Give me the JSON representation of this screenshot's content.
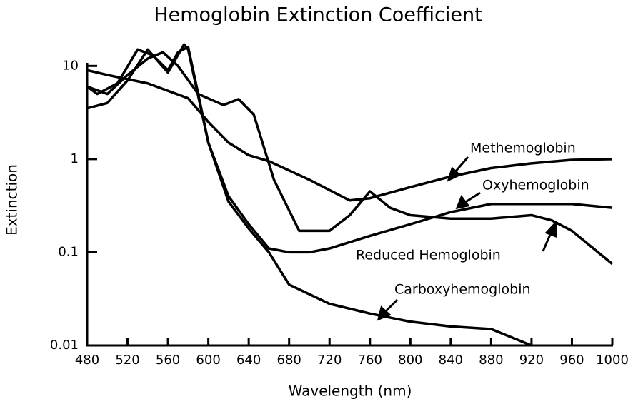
{
  "chart_data": {
    "type": "line",
    "title": "Hemoglobin Extinction Coefficient",
    "x_label": "Wavelength (nm)",
    "y_label": "Extinction",
    "xlim": [
      480,
      1000
    ],
    "xticks": [
      480,
      520,
      560,
      600,
      640,
      680,
      720,
      760,
      800,
      840,
      880,
      920,
      960,
      1000
    ],
    "ylim": [
      0.01,
      20
    ],
    "yticks": [
      0.01,
      0.1,
      1,
      10
    ],
    "log_y": true,
    "grid": false,
    "series": [
      {
        "name": "Methemoglobin",
        "color": "#000000",
        "x": [
          480,
          500,
          540,
          580,
          600,
          620,
          640,
          660,
          700,
          740,
          760,
          800,
          840,
          880,
          920,
          960,
          1000
        ],
        "values": [
          9,
          8,
          6.5,
          4.5,
          2.5,
          1.5,
          1.1,
          0.95,
          0.6,
          0.36,
          0.38,
          0.5,
          0.65,
          0.8,
          0.9,
          0.98,
          1
        ]
      },
      {
        "name": "Oxyhemoglobin",
        "color": "#000000",
        "x": [
          480,
          500,
          520,
          540,
          560,
          576,
          580,
          600,
          620,
          640,
          660,
          680,
          700,
          720,
          760,
          800,
          840,
          880,
          920,
          960,
          1000
        ],
        "values": [
          3.5,
          4,
          7,
          15,
          8.5,
          17,
          15,
          1.5,
          0.4,
          0.2,
          0.11,
          0.1,
          0.1,
          0.11,
          0.15,
          0.2,
          0.27,
          0.33,
          0.33,
          0.33,
          0.3
        ]
      },
      {
        "name": "Reduced Hemoglobin",
        "color": "#000000",
        "x": [
          480,
          500,
          520,
          540,
          555,
          570,
          590,
          615,
          630,
          645,
          665,
          690,
          720,
          740,
          760,
          780,
          800,
          840,
          880,
          920,
          940,
          960,
          1000
        ],
        "values": [
          6,
          5,
          8,
          12,
          14,
          10,
          5,
          3.8,
          4.4,
          3,
          0.6,
          0.17,
          0.17,
          0.25,
          0.45,
          0.3,
          0.25,
          0.23,
          0.23,
          0.25,
          0.22,
          0.17,
          0.075
        ]
      },
      {
        "name": "Carboxyhemoglobin",
        "color": "#000000",
        "x": [
          480,
          490,
          510,
          530,
          545,
          560,
          570,
          580,
          590,
          600,
          620,
          640,
          660,
          680,
          720,
          760,
          800,
          840,
          880,
          920
        ],
        "values": [
          6,
          5,
          6.5,
          15,
          13,
          9,
          14,
          16,
          5,
          1.5,
          0.35,
          0.18,
          0.1,
          0.045,
          0.028,
          0.022,
          0.018,
          0.016,
          0.015,
          0.01
        ]
      }
    ]
  }
}
